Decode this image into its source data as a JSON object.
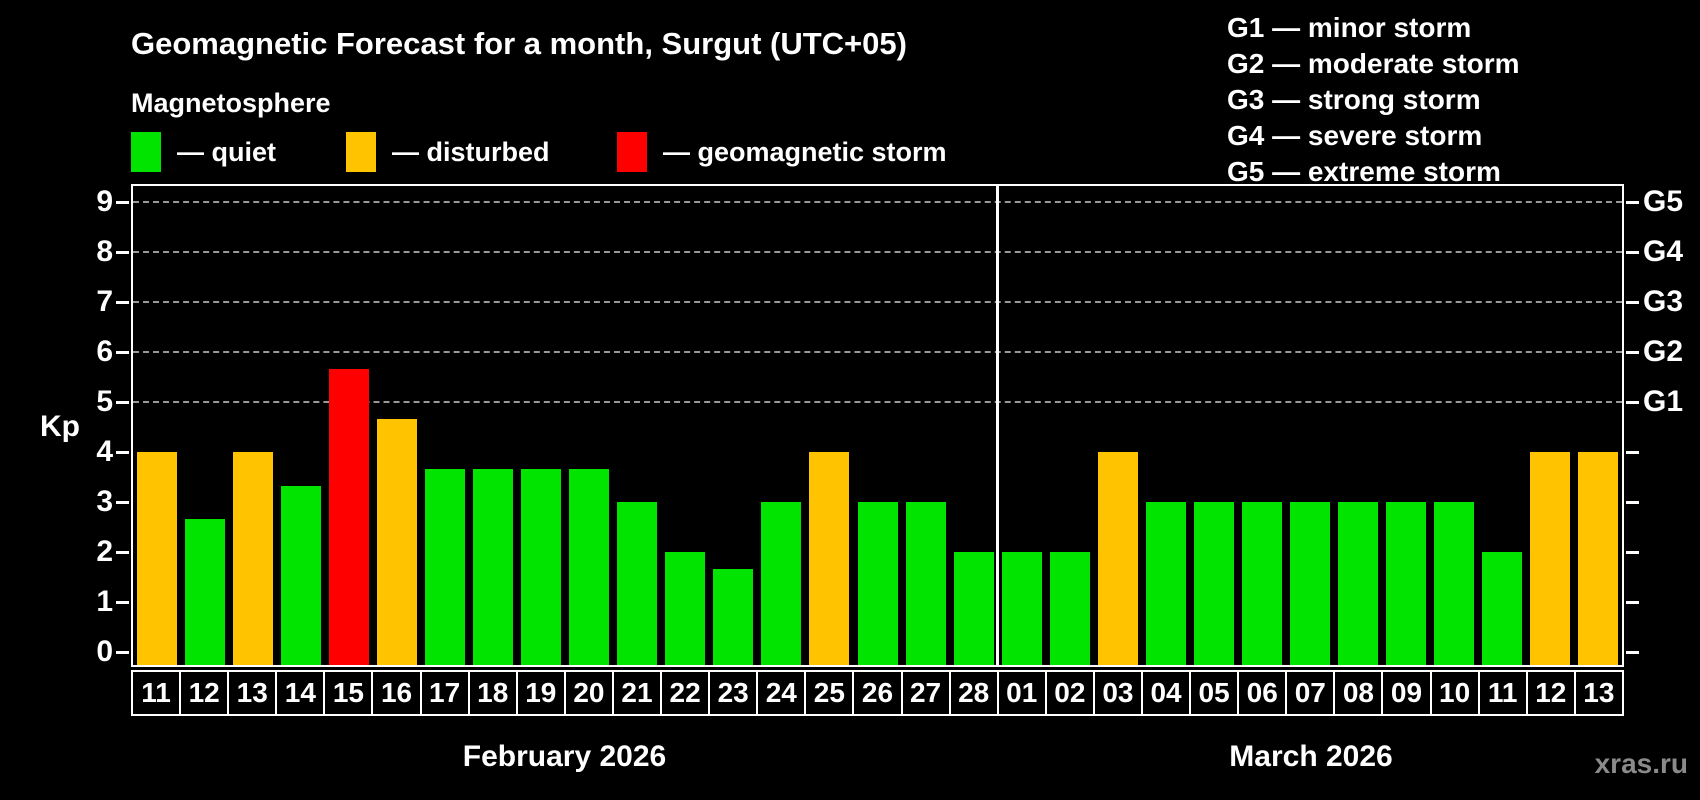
{
  "header": {
    "title": "Geomagnetic Forecast for a month, Surgut (UTC+05)",
    "subtitle": "Magnetosphere"
  },
  "legend": {
    "items": [
      {
        "label": "— quiet",
        "state": "quiet"
      },
      {
        "label": "— disturbed",
        "state": "disturbed"
      },
      {
        "label": "— geomagnetic storm",
        "state": "storm"
      }
    ]
  },
  "g_legend": {
    "lines": [
      "G1 — minor storm",
      "G2 — moderate storm",
      "G3 — strong storm",
      "G4 — severe storm",
      "G5 — extreme storm"
    ]
  },
  "watermark": "xras.ru",
  "colors": {
    "quiet": "#00e400",
    "disturbed": "#ffc300",
    "storm": "#ff0000",
    "grid": "#999999",
    "axis": "#ffffff",
    "watermark": "#8a8a8a",
    "background": "#000000"
  },
  "chart_data": {
    "type": "bar",
    "title": "Geomagnetic Forecast for a month, Surgut (UTC+05)",
    "xlabel": "",
    "ylabel": "Kp",
    "ylim": [
      -0.3,
      9.4
    ],
    "yticks": [
      0,
      1,
      2,
      3,
      4,
      5,
      6,
      7,
      8,
      9
    ],
    "gridlines_kp": [
      5,
      6,
      7,
      8,
      9
    ],
    "grid": "dashed, horizontal, only at Kp 5-9",
    "legend_position": "top-left",
    "right_axis": [
      {
        "label": "G1",
        "kp": 5
      },
      {
        "label": "G2",
        "kp": 6
      },
      {
        "label": "G3",
        "kp": 7
      },
      {
        "label": "G4",
        "kp": 8
      },
      {
        "label": "G5",
        "kp": 9
      }
    ],
    "months": [
      {
        "label": "February 2026",
        "days": [
          {
            "day": "11",
            "kp": 4.0,
            "state": "disturbed"
          },
          {
            "day": "12",
            "kp": 2.67,
            "state": "quiet"
          },
          {
            "day": "13",
            "kp": 4.0,
            "state": "disturbed"
          },
          {
            "day": "14",
            "kp": 3.33,
            "state": "quiet"
          },
          {
            "day": "15",
            "kp": 5.67,
            "state": "storm"
          },
          {
            "day": "16",
            "kp": 4.67,
            "state": "disturbed"
          },
          {
            "day": "17",
            "kp": 3.67,
            "state": "quiet"
          },
          {
            "day": "18",
            "kp": 3.67,
            "state": "quiet"
          },
          {
            "day": "19",
            "kp": 3.67,
            "state": "quiet"
          },
          {
            "day": "20",
            "kp": 3.67,
            "state": "quiet"
          },
          {
            "day": "21",
            "kp": 3.0,
            "state": "quiet"
          },
          {
            "day": "22",
            "kp": 2.0,
            "state": "quiet"
          },
          {
            "day": "23",
            "kp": 1.67,
            "state": "quiet"
          },
          {
            "day": "24",
            "kp": 3.0,
            "state": "quiet"
          },
          {
            "day": "25",
            "kp": 4.0,
            "state": "disturbed"
          },
          {
            "day": "26",
            "kp": 3.0,
            "state": "quiet"
          },
          {
            "day": "27",
            "kp": 3.0,
            "state": "quiet"
          },
          {
            "day": "28",
            "kp": 2.0,
            "state": "quiet"
          }
        ]
      },
      {
        "label": "March 2026",
        "days": [
          {
            "day": "01",
            "kp": 2.0,
            "state": "quiet"
          },
          {
            "day": "02",
            "kp": 2.0,
            "state": "quiet"
          },
          {
            "day": "03",
            "kp": 4.0,
            "state": "disturbed"
          },
          {
            "day": "04",
            "kp": 3.0,
            "state": "quiet"
          },
          {
            "day": "05",
            "kp": 3.0,
            "state": "quiet"
          },
          {
            "day": "06",
            "kp": 3.0,
            "state": "quiet"
          },
          {
            "day": "07",
            "kp": 3.0,
            "state": "quiet"
          },
          {
            "day": "08",
            "kp": 3.0,
            "state": "quiet"
          },
          {
            "day": "09",
            "kp": 3.0,
            "state": "quiet"
          },
          {
            "day": "10",
            "kp": 3.0,
            "state": "quiet"
          },
          {
            "day": "11",
            "kp": 2.0,
            "state": "quiet"
          },
          {
            "day": "12",
            "kp": 4.0,
            "state": "disturbed"
          },
          {
            "day": "13",
            "kp": 4.0,
            "state": "disturbed"
          }
        ]
      }
    ]
  }
}
